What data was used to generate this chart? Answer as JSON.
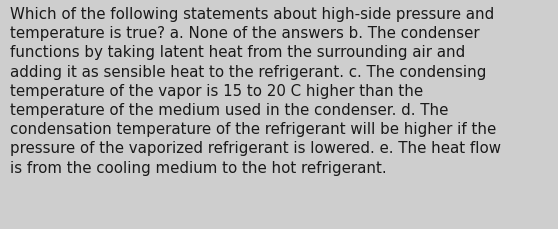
{
  "lines": [
    "Which of the following statements about high-side pressure and",
    "temperature is true? a. None of the answers b. The condenser",
    "functions by taking latent heat from the surrounding air and",
    "adding it as sensible heat to the refrigerant. c. The condensing",
    "temperature of the vapor is 15 to 20 C higher than the",
    "temperature of the medium used in the condenser. d. The",
    "condensation temperature of the refrigerant will be higher if the",
    "pressure of the vaporized refrigerant is lowered. e. The heat flow",
    "is from the cooling medium to the hot refrigerant."
  ],
  "background_color": "#cecece",
  "text_color": "#1a1a1a",
  "font_size": 10.8,
  "font_family": "DejaVu Sans",
  "fig_width": 5.58,
  "fig_height": 2.3,
  "dpi": 100
}
